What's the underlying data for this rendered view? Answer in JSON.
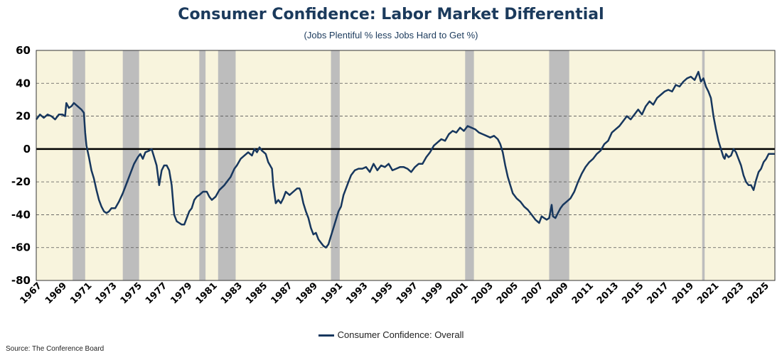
{
  "chart_data": {
    "type": "line",
    "title": "Consumer Confidence: Labor Market Differential",
    "subtitle": "(Jobs Plentiful % less Jobs Hard to Get %)",
    "xlabel": "",
    "ylabel": "",
    "xlim": [
      1967,
      2025.9
    ],
    "ylim": [
      -80,
      60
    ],
    "yticks": [
      60,
      40,
      20,
      0,
      -20,
      -40,
      -60,
      -80
    ],
    "ytick_labels": [
      "60",
      "40",
      "20",
      "0",
      "-20",
      "-40",
      "-60",
      "-80"
    ],
    "xtick_labels": [
      "1967",
      "1969",
      "1971",
      "1973",
      "1975",
      "1977",
      "1979",
      "1981",
      "1983",
      "1985",
      "1987",
      "1989",
      "1991",
      "1993",
      "1995",
      "1997",
      "1999",
      "2001",
      "2003",
      "2005",
      "2007",
      "2009",
      "2011",
      "2013",
      "2015",
      "2017",
      "2019",
      "2021",
      "2023",
      "2025"
    ],
    "grid": "horizontal dashed",
    "legend_position": "bottom-center",
    "recessions": [
      [
        1969.9,
        1970.9
      ],
      [
        1973.9,
        1975.2
      ],
      [
        1980.0,
        1980.5
      ],
      [
        1981.5,
        1982.9
      ],
      [
        1990.5,
        1991.2
      ],
      [
        2001.2,
        2001.9
      ],
      [
        2007.9,
        2009.5
      ],
      [
        2020.1,
        2020.3
      ]
    ],
    "series": [
      {
        "name": "Consumer Confidence: Overall",
        "color": "#17375e",
        "points": [
          [
            1967.0,
            18
          ],
          [
            1967.3,
            21
          ],
          [
            1967.6,
            19
          ],
          [
            1967.9,
            21
          ],
          [
            1968.2,
            20
          ],
          [
            1968.5,
            18
          ],
          [
            1968.8,
            21
          ],
          [
            1969.1,
            21
          ],
          [
            1969.3,
            20
          ],
          [
            1969.4,
            28
          ],
          [
            1969.6,
            25
          ],
          [
            1969.8,
            26
          ],
          [
            1970.0,
            28
          ],
          [
            1970.3,
            26
          ],
          [
            1970.6,
            24
          ],
          [
            1970.8,
            22
          ],
          [
            1970.9,
            10
          ],
          [
            1971.0,
            2
          ],
          [
            1971.2,
            -5
          ],
          [
            1971.4,
            -13
          ],
          [
            1971.6,
            -18
          ],
          [
            1971.8,
            -25
          ],
          [
            1972.0,
            -31
          ],
          [
            1972.2,
            -35
          ],
          [
            1972.4,
            -38
          ],
          [
            1972.6,
            -39
          ],
          [
            1972.8,
            -38
          ],
          [
            1973.0,
            -36
          ],
          [
            1973.3,
            -36
          ],
          [
            1973.6,
            -32
          ],
          [
            1973.9,
            -27
          ],
          [
            1974.2,
            -21
          ],
          [
            1974.5,
            -15
          ],
          [
            1974.8,
            -9
          ],
          [
            1975.1,
            -5
          ],
          [
            1975.3,
            -3
          ],
          [
            1975.5,
            -6
          ],
          [
            1975.7,
            -2
          ],
          [
            1976.0,
            -1
          ],
          [
            1976.2,
            0
          ],
          [
            1976.4,
            -5
          ],
          [
            1976.6,
            -10
          ],
          [
            1976.8,
            -22
          ],
          [
            1977.0,
            -13
          ],
          [
            1977.2,
            -10
          ],
          [
            1977.4,
            -10
          ],
          [
            1977.6,
            -13
          ],
          [
            1977.8,
            -22
          ],
          [
            1978.0,
            -40
          ],
          [
            1978.2,
            -44
          ],
          [
            1978.4,
            -45
          ],
          [
            1978.6,
            -46
          ],
          [
            1978.8,
            -46
          ],
          [
            1979.0,
            -42
          ],
          [
            1979.2,
            -38
          ],
          [
            1979.4,
            -36
          ],
          [
            1979.6,
            -31
          ],
          [
            1979.8,
            -29
          ],
          [
            1980.0,
            -28
          ],
          [
            1980.3,
            -26
          ],
          [
            1980.6,
            -26
          ],
          [
            1980.8,
            -29
          ],
          [
            1981.0,
            -31
          ],
          [
            1981.3,
            -29
          ],
          [
            1981.6,
            -25
          ],
          [
            1982.0,
            -22
          ],
          [
            1982.2,
            -20
          ],
          [
            1982.5,
            -17
          ],
          [
            1982.8,
            -12
          ],
          [
            1983.0,
            -10
          ],
          [
            1983.3,
            -6
          ],
          [
            1983.6,
            -4
          ],
          [
            1983.9,
            -2
          ],
          [
            1984.2,
            -4
          ],
          [
            1984.4,
            0
          ],
          [
            1984.6,
            -2
          ],
          [
            1984.8,
            1
          ],
          [
            1985.0,
            -1
          ],
          [
            1985.3,
            -3
          ],
          [
            1985.5,
            -8
          ],
          [
            1985.8,
            -12
          ],
          [
            1985.9,
            -22
          ],
          [
            1986.1,
            -33
          ],
          [
            1986.3,
            -31
          ],
          [
            1986.5,
            -33
          ],
          [
            1986.7,
            -30
          ],
          [
            1986.9,
            -26
          ],
          [
            1987.2,
            -28
          ],
          [
            1987.5,
            -26
          ],
          [
            1987.8,
            -24
          ],
          [
            1988.0,
            -24
          ],
          [
            1988.1,
            -26
          ],
          [
            1988.3,
            -33
          ],
          [
            1988.5,
            -38
          ],
          [
            1988.7,
            -42
          ],
          [
            1988.9,
            -48
          ],
          [
            1989.1,
            -52
          ],
          [
            1989.3,
            -51
          ],
          [
            1989.5,
            -55
          ],
          [
            1989.7,
            -57
          ],
          [
            1989.9,
            -59
          ],
          [
            1990.1,
            -60
          ],
          [
            1990.3,
            -58
          ],
          [
            1990.5,
            -53
          ],
          [
            1990.7,
            -48
          ],
          [
            1990.9,
            -43
          ],
          [
            1991.1,
            -38
          ],
          [
            1991.3,
            -35
          ],
          [
            1991.5,
            -28
          ],
          [
            1991.7,
            -24
          ],
          [
            1991.9,
            -20
          ],
          [
            1992.1,
            -16
          ],
          [
            1992.4,
            -13
          ],
          [
            1992.7,
            -12
          ],
          [
            1993.0,
            -12
          ],
          [
            1993.3,
            -11
          ],
          [
            1993.6,
            -14
          ],
          [
            1993.9,
            -9
          ],
          [
            1994.2,
            -13
          ],
          [
            1994.5,
            -10
          ],
          [
            1994.8,
            -11
          ],
          [
            1995.1,
            -9
          ],
          [
            1995.4,
            -13
          ],
          [
            1995.7,
            -12
          ],
          [
            1996.0,
            -11
          ],
          [
            1996.3,
            -11
          ],
          [
            1996.6,
            -12
          ],
          [
            1996.9,
            -14
          ],
          [
            1997.2,
            -11
          ],
          [
            1997.5,
            -9
          ],
          [
            1997.8,
            -9
          ],
          [
            1998.1,
            -5
          ],
          [
            1998.4,
            -2
          ],
          [
            1998.7,
            2
          ],
          [
            1999.0,
            4
          ],
          [
            1999.3,
            6
          ],
          [
            1999.6,
            5
          ],
          [
            1999.9,
            9
          ],
          [
            2000.2,
            11
          ],
          [
            2000.5,
            10
          ],
          [
            2000.8,
            13
          ],
          [
            2001.1,
            11
          ],
          [
            2001.4,
            14
          ],
          [
            2001.7,
            13
          ],
          [
            2002.0,
            12
          ],
          [
            2002.3,
            10
          ],
          [
            2002.6,
            9
          ],
          [
            2002.9,
            8
          ],
          [
            2003.2,
            7
          ],
          [
            2003.5,
            8
          ],
          [
            2003.8,
            6
          ],
          [
            2004.0,
            3
          ],
          [
            2004.2,
            -2
          ],
          [
            2004.4,
            -10
          ],
          [
            2004.6,
            -17
          ],
          [
            2004.8,
            -22
          ],
          [
            2005.0,
            -27
          ],
          [
            2005.3,
            -30
          ],
          [
            2005.6,
            -32
          ],
          [
            2005.9,
            -35
          ],
          [
            2006.2,
            -37
          ],
          [
            2006.5,
            -40
          ],
          [
            2006.8,
            -43
          ],
          [
            2007.1,
            -45
          ],
          [
            2007.3,
            -41
          ],
          [
            2007.5,
            -42
          ],
          [
            2007.7,
            -43
          ],
          [
            2007.9,
            -42
          ],
          [
            2008.1,
            -34
          ],
          [
            2008.2,
            -41
          ],
          [
            2008.4,
            -42
          ],
          [
            2008.6,
            -39
          ],
          [
            2008.8,
            -36
          ],
          [
            2009.0,
            -34
          ],
          [
            2009.3,
            -32
          ],
          [
            2009.6,
            -30
          ],
          [
            2009.9,
            -26
          ],
          [
            2010.2,
            -20
          ],
          [
            2010.5,
            -15
          ],
          [
            2010.8,
            -11
          ],
          [
            2011.1,
            -8
          ],
          [
            2011.4,
            -6
          ],
          [
            2011.7,
            -3
          ],
          [
            2012.0,
            -1
          ],
          [
            2012.3,
            3
          ],
          [
            2012.6,
            5
          ],
          [
            2012.9,
            10
          ],
          [
            2013.2,
            12
          ],
          [
            2013.5,
            14
          ],
          [
            2013.8,
            17
          ],
          [
            2014.1,
            20
          ],
          [
            2014.4,
            18
          ],
          [
            2014.7,
            21
          ],
          [
            2015.0,
            24
          ],
          [
            2015.3,
            21
          ],
          [
            2015.6,
            26
          ],
          [
            2015.9,
            29
          ],
          [
            2016.2,
            27
          ],
          [
            2016.5,
            31
          ],
          [
            2016.8,
            33
          ],
          [
            2017.1,
            35
          ],
          [
            2017.4,
            36
          ],
          [
            2017.7,
            35
          ],
          [
            2018.0,
            39
          ],
          [
            2018.3,
            38
          ],
          [
            2018.6,
            41
          ],
          [
            2018.9,
            43
          ],
          [
            2019.2,
            44
          ],
          [
            2019.5,
            42
          ],
          [
            2019.8,
            47
          ],
          [
            2020.0,
            41
          ],
          [
            2020.2,
            43
          ],
          [
            2020.4,
            38
          ],
          [
            2020.6,
            35
          ],
          [
            2020.8,
            31
          ],
          [
            2021.0,
            20
          ],
          [
            2021.2,
            12
          ],
          [
            2021.4,
            5
          ],
          [
            2021.6,
            0
          ],
          [
            2021.8,
            -5
          ],
          [
            2021.9,
            -6
          ],
          [
            2022.0,
            -3
          ],
          [
            2022.2,
            -5
          ],
          [
            2022.4,
            -4
          ],
          [
            2022.6,
            0
          ],
          [
            2022.8,
            -2
          ],
          [
            2023.0,
            -6
          ],
          [
            2023.2,
            -10
          ],
          [
            2023.4,
            -16
          ],
          [
            2023.6,
            -20
          ],
          [
            2023.8,
            -22
          ],
          [
            2024.0,
            -22
          ],
          [
            2024.2,
            -25
          ],
          [
            2024.4,
            -19
          ],
          [
            2024.6,
            -14
          ],
          [
            2024.8,
            -12
          ],
          [
            2025.0,
            -8
          ],
          [
            2025.2,
            -6
          ],
          [
            2025.4,
            -3
          ],
          [
            2025.9,
            -3
          ]
        ]
      }
    ]
  },
  "legend": {
    "label": "Consumer Confidence: Overall"
  },
  "source": "Source: The Conference Board"
}
